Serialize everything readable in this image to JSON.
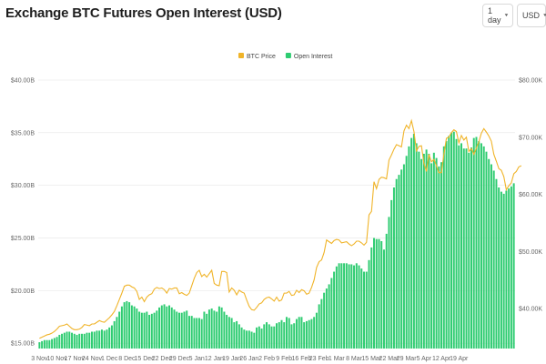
{
  "header": {
    "title": "Exchange BTC Futures Open Interest (USD)",
    "interval_value": "1 day",
    "currency_value": "USD"
  },
  "icons": {
    "dropdown": "chevron-down-icon"
  },
  "colors": {
    "open_interest": "#2ecc71",
    "btc_price": "#f0b429",
    "grid": "#e6e6e6"
  },
  "chart_data": {
    "type": "bar",
    "title": "Exchange BTC Futures Open Interest (USD)",
    "legend_position": "top-center",
    "grid": true,
    "y_left": {
      "unit": "USD",
      "range": [
        14.5,
        40
      ],
      "ticks": [
        "$15.00B",
        "$20.00B",
        "$25.00B",
        "$30.00B",
        "$35.00B",
        "$40.00B"
      ],
      "tick_values": [
        15,
        20,
        25,
        30,
        35,
        40
      ]
    },
    "y_right": {
      "range": [
        33,
        80
      ],
      "ticks": [
        "$40.00K",
        "$50.00K",
        "$60.00K",
        "$70.00K",
        "$80.00K"
      ],
      "tick_values": [
        40,
        50,
        60,
        70,
        80
      ]
    },
    "x_ticks": [
      "3 Nov",
      "10 Nov",
      "17 Nov",
      "24 Nov",
      "1 Dec",
      "8 Dec",
      "15 Dec",
      "22 Dec",
      "29 Dec",
      "5 Jan",
      "12 Jan",
      "19 Jan",
      "26 Jan",
      "2 Feb",
      "9 Feb",
      "16 Feb",
      "23 Feb",
      "1 Mar",
      "8 Mar",
      "15 Mar",
      "22 Mar",
      "29 Mar",
      "5 Apr",
      "12 Apr",
      "19 Apr"
    ],
    "series": [
      {
        "name": "Open Interest",
        "type": "bar",
        "axis": "left",
        "values": [
          15.1,
          15.2,
          15.3,
          15.3,
          15.3,
          15.4,
          15.5,
          15.6,
          15.8,
          15.9,
          16.0,
          16.1,
          16.1,
          16.0,
          15.9,
          15.8,
          15.9,
          15.9,
          15.9,
          16.0,
          16.0,
          16.1,
          16.1,
          16.2,
          16.2,
          16.3,
          16.2,
          16.3,
          16.5,
          16.7,
          17.1,
          17.5,
          18.0,
          18.5,
          18.9,
          19.0,
          18.9,
          18.6,
          18.5,
          18.3,
          18.0,
          17.9,
          17.9,
          18.0,
          17.7,
          17.8,
          17.9,
          18.1,
          18.4,
          18.6,
          18.7,
          18.5,
          18.6,
          18.4,
          18.2,
          18.0,
          17.9,
          17.9,
          18.0,
          18.1,
          17.6,
          17.6,
          17.4,
          17.4,
          17.4,
          17.3,
          18.0,
          17.8,
          18.2,
          18.3,
          18.1,
          18.0,
          18.5,
          18.4,
          18.0,
          17.7,
          17.5,
          17.4,
          17.0,
          17.1,
          16.8,
          16.5,
          16.3,
          16.2,
          16.2,
          16.1,
          16.0,
          16.5,
          16.6,
          16.4,
          16.8,
          17.0,
          16.8,
          16.6,
          16.6,
          16.9,
          17.0,
          17.2,
          17.0,
          17.5,
          17.4,
          16.8,
          16.9,
          17.3,
          17.5,
          17.5,
          17.0,
          17.1,
          17.2,
          17.3,
          17.5,
          17.9,
          18.7,
          19.2,
          19.8,
          20.2,
          20.6,
          21.2,
          21.8,
          22.3,
          22.6,
          22.6,
          22.6,
          22.6,
          22.5,
          22.5,
          22.4,
          22.6,
          22.4,
          22.1,
          21.8,
          21.8,
          22.9,
          24.1,
          25.0,
          24.9,
          24.9,
          24.7,
          23.9,
          25.4,
          27.0,
          28.6,
          29.8,
          30.6,
          31.0,
          31.5,
          32.0,
          32.8,
          33.7,
          34.5,
          34.9,
          34.0,
          33.2,
          32.5,
          33.0,
          33.4,
          33.0,
          32.1,
          33.1,
          32.6,
          31.8,
          32.2,
          33.7,
          34.2,
          34.7,
          35.0,
          35.1,
          34.4,
          33.8,
          34.0,
          33.5,
          33.5,
          33.1,
          33.6,
          34.5,
          34.6,
          34.2,
          34.0,
          33.7,
          33.2,
          32.5,
          32.0,
          31.4,
          30.6,
          29.8,
          29.4,
          29.2,
          29.5,
          29.7,
          29.9,
          30.2
        ]
      },
      {
        "name": "BTC Price",
        "type": "line",
        "axis": "right",
        "values": [
          34.8,
          35.0,
          35.2,
          35.4,
          35.5,
          35.7,
          36.0,
          36.4,
          36.9,
          37.0,
          37.1,
          37.3,
          36.9,
          36.5,
          36.3,
          36.3,
          36.4,
          36.7,
          37.2,
          37.1,
          37.0,
          37.3,
          37.3,
          37.6,
          37.9,
          37.7,
          37.6,
          38.0,
          38.4,
          38.9,
          39.5,
          40.5,
          41.6,
          42.7,
          43.9,
          44.1,
          44.1,
          43.8,
          43.6,
          43.0,
          41.6,
          42.0,
          41.2,
          42.0,
          42.4,
          42.6,
          43.4,
          43.7,
          43.5,
          43.6,
          43.3,
          42.7,
          43.5,
          43.4,
          43.6,
          43.6,
          42.6,
          42.8,
          42.5,
          42.3,
          42.7,
          44.0,
          45.3,
          46.3,
          46.7,
          45.6,
          46.0,
          45.5,
          46.1,
          46.7,
          44.4,
          44.1,
          44.0,
          46.5,
          46.5,
          46.3,
          42.9,
          43.6,
          43.2,
          42.4,
          43.2,
          42.9,
          42.7,
          41.5,
          40.4,
          39.8,
          39.7,
          40.2,
          40.8,
          41.0,
          41.6,
          41.9,
          42.0,
          41.7,
          41.3,
          42.0,
          41.3,
          41.5,
          42.7,
          42.7,
          43.0,
          42.3,
          42.4,
          43.2,
          42.8,
          43.3,
          43.1,
          42.5,
          42.7,
          43.7,
          45.0,
          47.2,
          48.2,
          48.5,
          49.8,
          52.0,
          51.7,
          51.4,
          51.9,
          52.1,
          52.0,
          51.5,
          51.6,
          51.7,
          51.3,
          51.0,
          51.3,
          51.8,
          51.8,
          51.5,
          51.1,
          51.6,
          56.4,
          57.0,
          62.2,
          61.0,
          62.6,
          63.0,
          62.9,
          62.7,
          66.0,
          66.9,
          67.9,
          68.7,
          68.5,
          68.3,
          71.1,
          72.1,
          71.5,
          72.9,
          71.0,
          67.6,
          68.4,
          68.5,
          65.4,
          64.0,
          67.0,
          65.7,
          66.1,
          65.0,
          63.8,
          63.8,
          67.0,
          69.8,
          70.0,
          70.8,
          71.3,
          71.0,
          69.0,
          70.3,
          69.5,
          70.0,
          67.5,
          68.0,
          67.0,
          68.1,
          69.2,
          70.7,
          71.5,
          70.9,
          70.2,
          69.3,
          67.0,
          65.8,
          64.5,
          64.2,
          63.1,
          60.8,
          61.5,
          62.0,
          63.6,
          64.0,
          64.8,
          65.0
        ]
      }
    ]
  }
}
